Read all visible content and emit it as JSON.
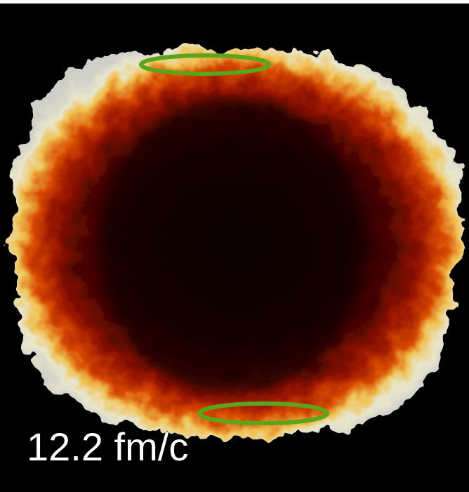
{
  "label": "12.2 fm/c"
}
